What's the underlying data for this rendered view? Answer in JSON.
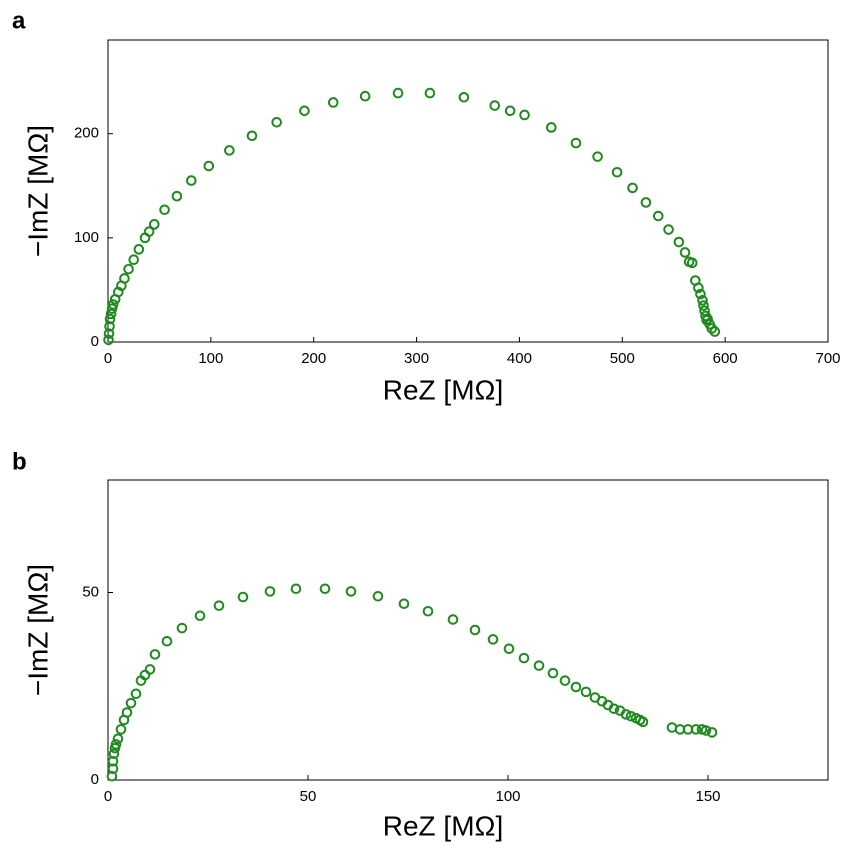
{
  "chart_data": [
    {
      "type": "scatter",
      "title": "a",
      "x_label": "ReZ [MΩ]",
      "y_label": "−ImZ [MΩ]",
      "xlim": [
        0,
        700
      ],
      "ylim": [
        0,
        290
      ],
      "xticks": [
        0,
        100,
        200,
        300,
        400,
        500,
        600,
        700
      ],
      "yticks": [
        0,
        100,
        200
      ],
      "grid": false,
      "series": [
        {
          "name": "data",
          "color": "#1e8a1e",
          "x": [
            0.5,
            1,
            1.5,
            2,
            3,
            4,
            5,
            7,
            10,
            13,
            16,
            20,
            25,
            30,
            36,
            40,
            45,
            55,
            67,
            81,
            98,
            118,
            140,
            164,
            191,
            219,
            250,
            282,
            313,
            346,
            376,
            391,
            405,
            431,
            455,
            476,
            495,
            510,
            523,
            535,
            545,
            555,
            561,
            565,
            568,
            571,
            574,
            576,
            578,
            579,
            580,
            581,
            582,
            583,
            585,
            587,
            590
          ],
          "values": [
            2,
            8,
            15,
            22,
            27,
            32,
            36,
            41,
            48,
            54,
            61,
            70,
            79,
            89,
            100,
            106,
            113,
            127,
            140,
            155,
            169,
            184,
            198,
            211,
            222,
            230,
            236,
            239,
            239,
            235,
            227,
            222,
            218,
            206,
            191,
            178,
            163,
            148,
            134,
            121,
            108,
            96,
            86,
            77,
            76,
            59,
            52,
            46,
            40,
            35,
            30,
            25,
            21,
            22,
            17,
            13,
            10
          ]
        }
      ]
    },
    {
      "type": "scatter",
      "title": "b",
      "x_label": "ReZ [MΩ]",
      "y_label": "−ImZ [MΩ]",
      "xlim": [
        0,
        180
      ],
      "ylim": [
        0,
        80
      ],
      "xticks": [
        0,
        50,
        100,
        150
      ],
      "yticks": [
        0,
        50
      ],
      "grid": false,
      "series": [
        {
          "name": "data",
          "color": "#1e8a1e",
          "x": [
            1,
            1.25,
            1.25,
            1.5,
            1.75,
            2,
            2.5,
            3.25,
            4,
            4.75,
            5.75,
            7,
            8.25,
            9.25,
            10.5,
            11.75,
            14.75,
            18.5,
            23,
            27.75,
            33.75,
            40.5,
            47,
            54.25,
            60.75,
            67.5,
            74,
            80,
            86.25,
            91.75,
            96.25,
            100.25,
            104,
            107.75,
            111.25,
            114.25,
            117,
            119.5,
            121.75,
            123.5,
            125,
            126.5,
            128,
            129.5,
            130.75,
            132,
            133,
            133.75,
            141,
            143,
            145,
            147,
            148.5,
            149.5,
            151
          ],
          "values": [
            1,
            3,
            5,
            7,
            8.5,
            9.5,
            11,
            13.5,
            16,
            18,
            20.5,
            23,
            26.5,
            28,
            29.5,
            33.5,
            37,
            40.5,
            43.8,
            46.5,
            48.8,
            50.3,
            51,
            51,
            50.3,
            49,
            47,
            45,
            42.8,
            40,
            37.5,
            35,
            32.5,
            30.5,
            28.5,
            26.5,
            24.8,
            23.5,
            22,
            21,
            20,
            19,
            18.5,
            17.5,
            17,
            16.5,
            16,
            15.5,
            14,
            13.5,
            13.5,
            13.5,
            13.5,
            13.2,
            12.7
          ]
        }
      ]
    }
  ]
}
